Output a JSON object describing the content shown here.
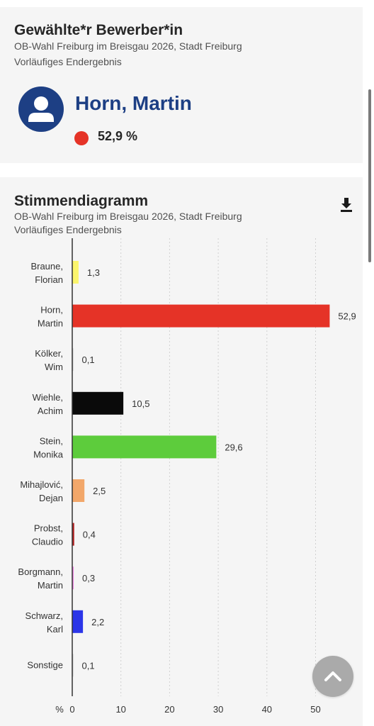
{
  "winner": {
    "heading": "Gewählte*r Bewerber*in",
    "subtitle": "OB-Wahl Freiburg im Breisgau 2026, Stadt Freiburg",
    "status": "Vorläufiges Endergebnis",
    "name": "Horn, Martin",
    "percent": "52,9 %",
    "color": "#e53327"
  },
  "diagram": {
    "heading": "Stimmendiagramm",
    "subtitle": "OB-Wahl Freiburg im Breisgau 2026, Stadt Freiburg",
    "status": "Vorläufiges Endergebnis",
    "download_icon": "download-icon"
  },
  "chart_data": {
    "type": "bar",
    "orientation": "horizontal",
    "xlabel": "%",
    "xlim": [
      0,
      55
    ],
    "xticks": [
      0,
      10,
      20,
      30,
      40,
      50
    ],
    "grid": "vertical dotted",
    "categories": [
      [
        "Braune,",
        "Florian"
      ],
      [
        "Horn,",
        "Martin"
      ],
      [
        "Kölker,",
        "Wim"
      ],
      [
        "Wiehle,",
        "Achim"
      ],
      [
        "Stein,",
        "Monika"
      ],
      [
        "Mihajlović,",
        "Dejan"
      ],
      [
        "Probst,",
        "Claudio"
      ],
      [
        "Borgmann,",
        "Martin"
      ],
      [
        "Schwarz,",
        "Karl"
      ],
      [
        "Sonstige"
      ]
    ],
    "values": [
      1.3,
      52.9,
      0.1,
      10.5,
      29.6,
      2.5,
      0.4,
      0.3,
      2.2,
      0.1
    ],
    "value_labels": [
      "1,3",
      "52,9",
      "0,1",
      "10,5",
      "29,6",
      "2,5",
      "0,4",
      "0,3",
      "2,2",
      "0,1"
    ],
    "colors": [
      "#fbf56c",
      "#e53327",
      "#cccccc",
      "#0a0a0a",
      "#5dcc3c",
      "#f2a76a",
      "#b22020",
      "#f08ce6",
      "#2b35e8",
      "#cccccc"
    ]
  },
  "scroll_top_icon": "chevron-up-icon"
}
